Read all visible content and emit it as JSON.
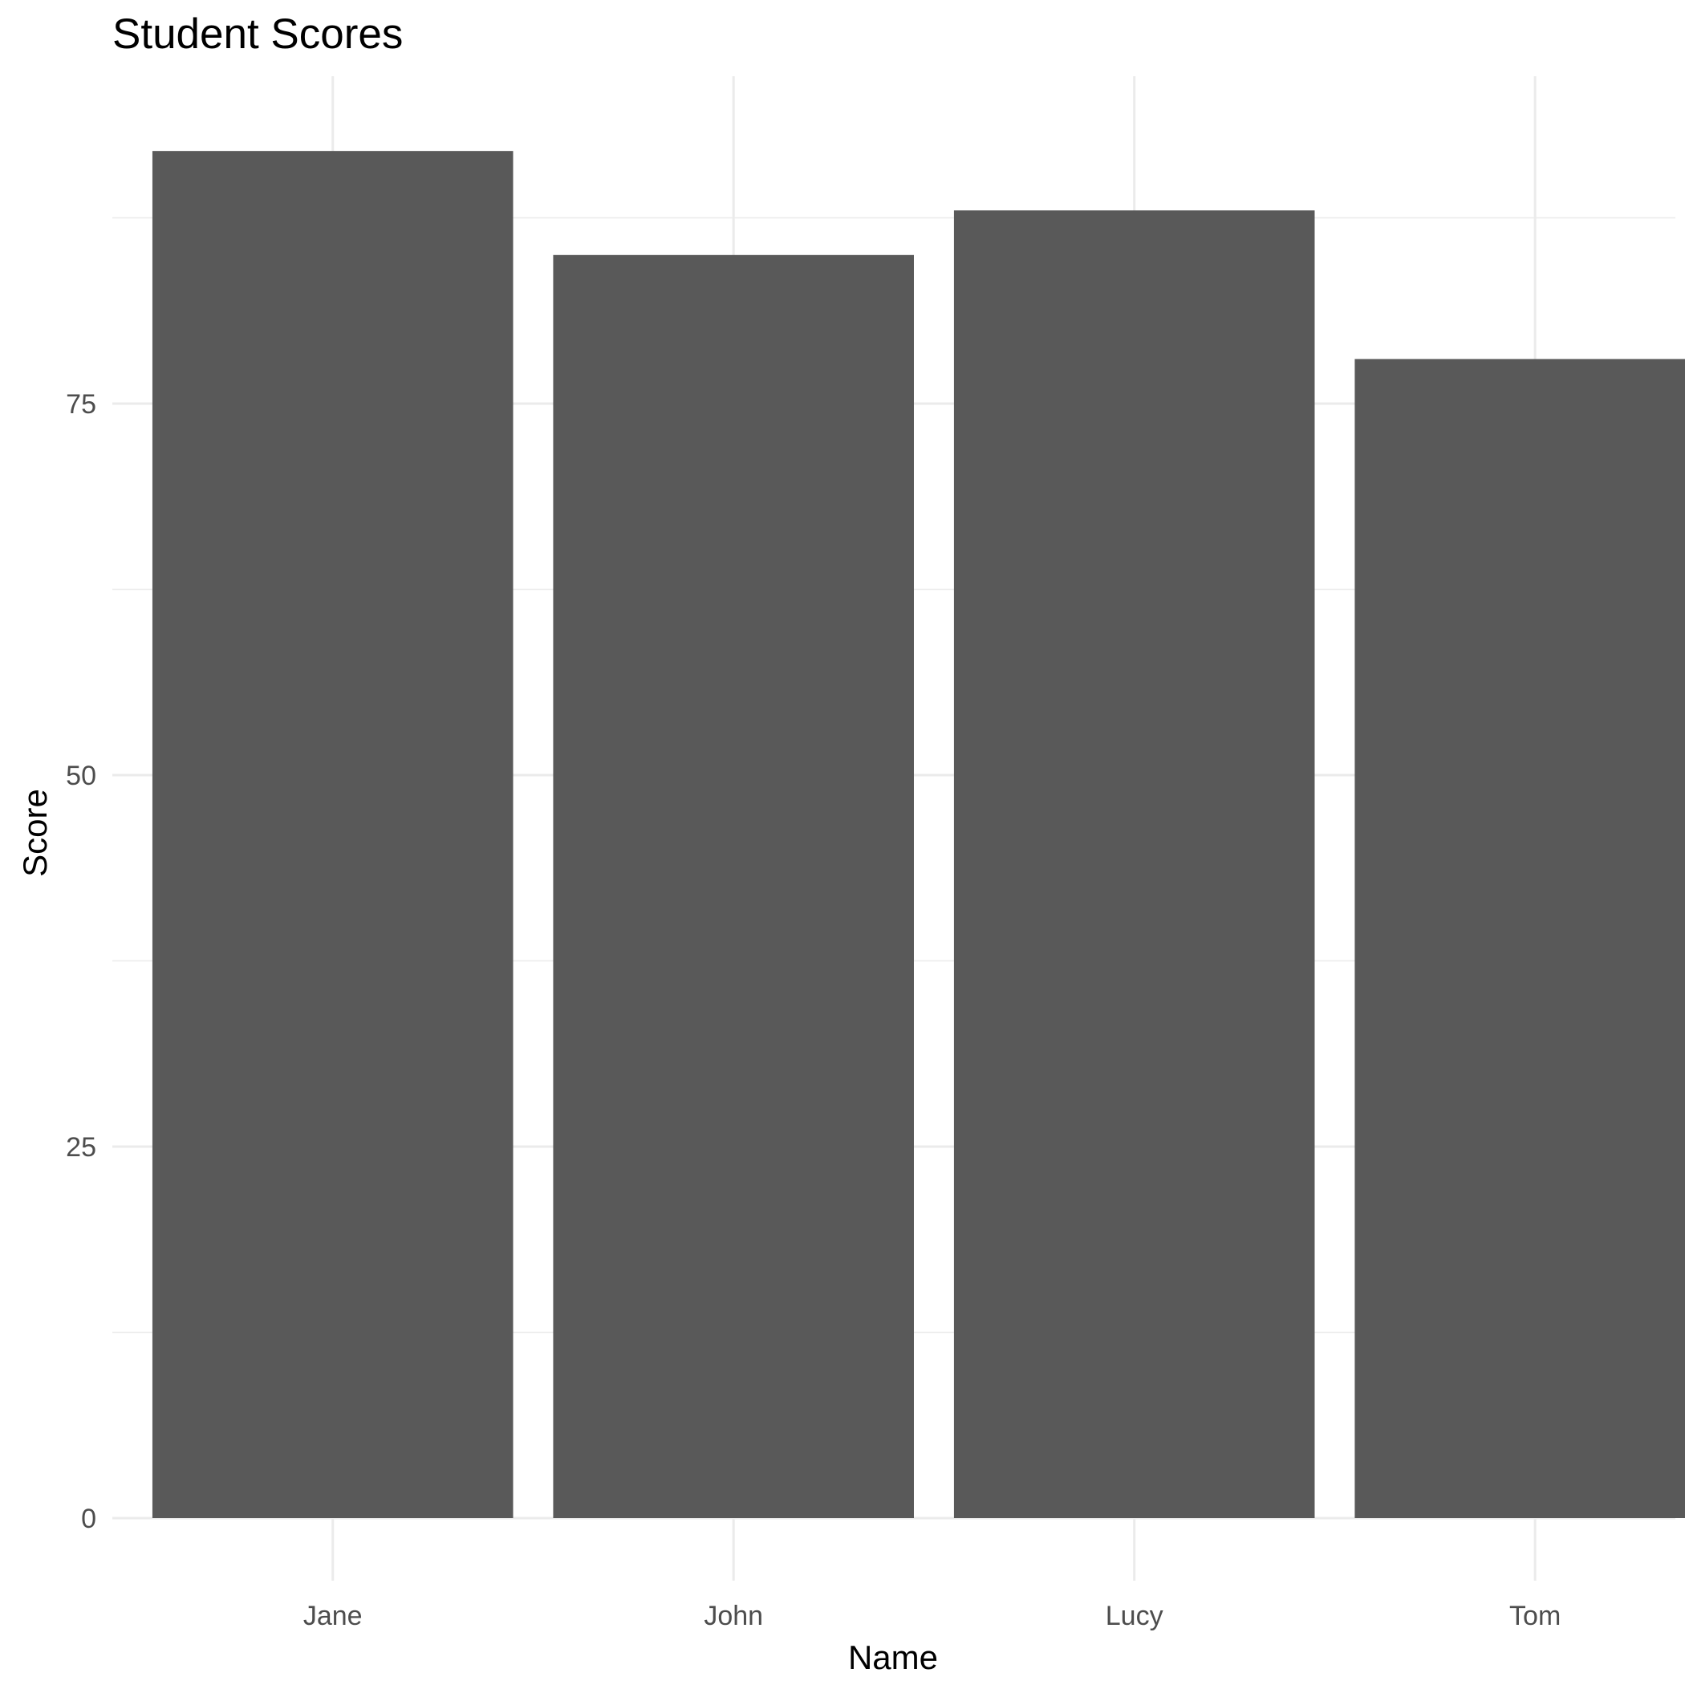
{
  "chart_data": {
    "type": "bar",
    "title": "Student Scores",
    "xlabel": "Name",
    "ylabel": "Score",
    "categories": [
      "Jane",
      "John",
      "Lucy",
      "Tom"
    ],
    "values": [
      92,
      85,
      88,
      78
    ],
    "ylim": [
      0,
      96.6
    ],
    "yticks": [
      0,
      25,
      50,
      75
    ],
    "yticks_minor": [
      12.5,
      37.5,
      62.5,
      87.5
    ],
    "bar_color": "#595959",
    "grid": true,
    "legend": "none"
  }
}
